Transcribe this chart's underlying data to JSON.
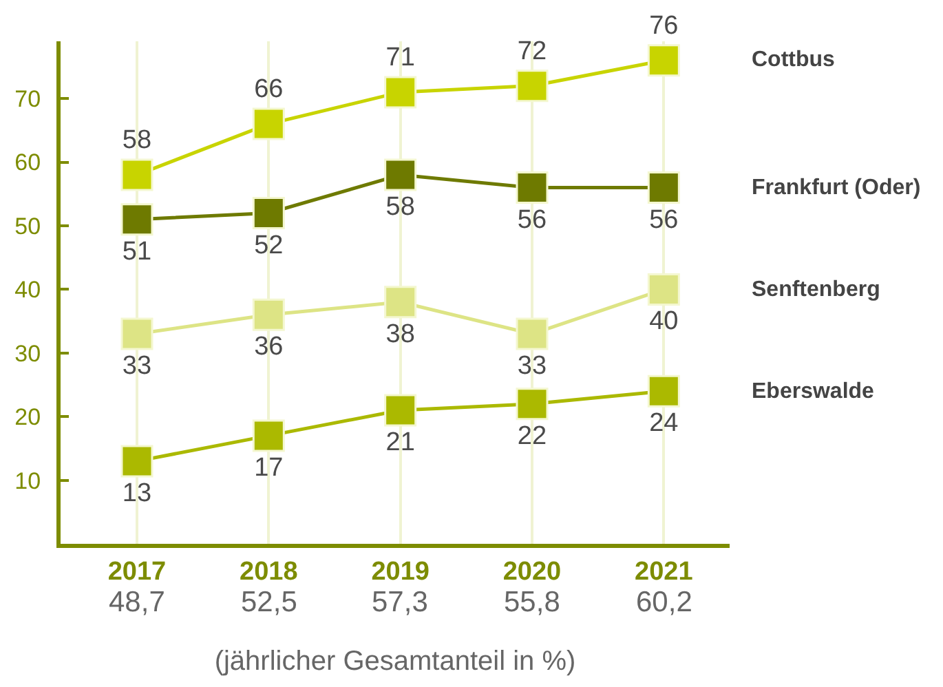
{
  "chart_data": {
    "type": "line",
    "xlabel": "(jährlicher Gesamtanteil in %)",
    "categories": [
      "2017",
      "2018",
      "2019",
      "2020",
      "2021"
    ],
    "series": [
      {
        "name": "Cottbus",
        "color": "#c8d400",
        "values": [
          58,
          66,
          71,
          72,
          76
        ]
      },
      {
        "name": "Frankfurt (Oder)",
        "color": "#6e7a00",
        "values": [
          51,
          52,
          58,
          56,
          56
        ]
      },
      {
        "name": "Senftenberg",
        "color": "#dde485",
        "values": [
          33,
          36,
          38,
          33,
          40
        ]
      },
      {
        "name": "Eberswalde",
        "color": "#abb900",
        "values": [
          13,
          17,
          21,
          22,
          24
        ]
      }
    ],
    "annotations": [
      "48,7",
      "52,5",
      "57,3",
      "55,8",
      "60,2"
    ],
    "ylim": [
      0,
      79
    ],
    "yticks": [
      10,
      20,
      30,
      40,
      50,
      60,
      70
    ],
    "data_labels": true,
    "grid": "x",
    "marker": "square",
    "line_style": "solid",
    "legend": false
  }
}
